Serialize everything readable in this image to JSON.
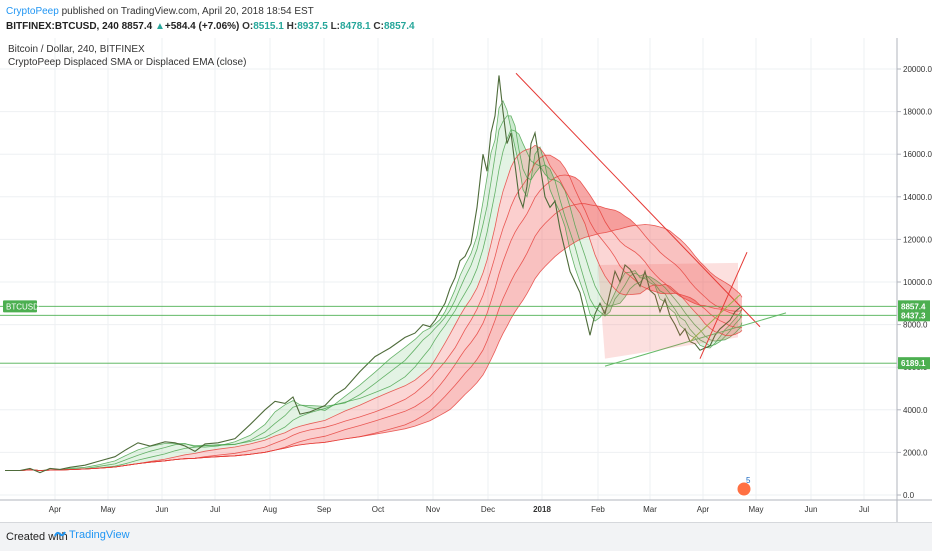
{
  "header": {
    "author": "CryptoPeep",
    "published": " published on TradingView.com, April 20, 2018 18:54 EST",
    "symbol": "BITFINEX:BTCUSD, 240",
    "last": "8857.4",
    "up_arrow": "▲",
    "change": "+584.4 (+7.06%)",
    "o_label": "O:",
    "o_value": "8515.1",
    "h_label": "H:",
    "h_value": "8937.5",
    "l_label": "L:",
    "l_value": "8478.1",
    "c_label": "C:",
    "c_value": "8857.4"
  },
  "legend": {
    "title": "Bitcoin / Dollar, 240, BITFINEX",
    "indicator": "CryptoPeep Displaced SMA or Displaced EMA (close)"
  },
  "footer": {
    "created_with": "Created with",
    "brand": "TradingView"
  },
  "colors": {
    "up": "#26a69a",
    "green_ma": "#4caf50",
    "red_ma": "#e53935",
    "trendline": "#e53935",
    "support": "#66bb6a"
  },
  "chart_data": {
    "type": "line",
    "title": "Bitcoin / Dollar, 240, BITFINEX",
    "subtitle": "CryptoPeep Displaced SMA or Displaced EMA (close)",
    "x_axis": {
      "tick_labels": [
        "Apr",
        "May",
        "Jun",
        "Jul",
        "Aug",
        "Sep",
        "Oct",
        "Nov",
        "Dec",
        "2018",
        "Feb",
        "Mar",
        "Apr",
        "May",
        "Jun",
        "Jul"
      ]
    },
    "y_axis": {
      "range": [
        0,
        21000
      ],
      "tick_labels": [
        "0.0",
        "2000.0",
        "4000.0",
        "6000.0",
        "8000.0",
        "10000.0",
        "12000.0",
        "14000.0",
        "16000.0",
        "18000.0",
        "20000.0"
      ],
      "tick_values": [
        0,
        2000,
        4000,
        6000,
        8000,
        10000,
        12000,
        14000,
        16000,
        18000,
        20000
      ]
    },
    "price_labels": [
      {
        "text": "8857.4",
        "value": 8857.4,
        "color": "#4caf50"
      },
      {
        "text": "8437.3",
        "value": 8437.3,
        "color": "#4caf50"
      },
      {
        "text": "6189.1",
        "value": 6189.1,
        "color": "#4caf50"
      }
    ],
    "symbol_tag": "BTCUSD",
    "marker_label": "5",
    "series": [
      {
        "name": "BTCUSD",
        "t": [
          0,
          15,
          25,
          35,
          45,
          55,
          65,
          80,
          95,
          110,
          120,
          133,
          145,
          160,
          170,
          180,
          190,
          200,
          213,
          230,
          245,
          260,
          270,
          280,
          288,
          295,
          305,
          320,
          330,
          340,
          355,
          370,
          385,
          400,
          410,
          418,
          425,
          430,
          435,
          440,
          445,
          450,
          455,
          460,
          466,
          472,
          478,
          482,
          486,
          490,
          494,
          498,
          502,
          506,
          510,
          514,
          518,
          522,
          526,
          530,
          535,
          540,
          545,
          550,
          555,
          560,
          565,
          570,
          575,
          580,
          585,
          590,
          595,
          600,
          605,
          610,
          615,
          620,
          625,
          630,
          635,
          640,
          645,
          650,
          655,
          660,
          665,
          670,
          675,
          680,
          685,
          690,
          695,
          700,
          705,
          710,
          715,
          720,
          725,
          730,
          735,
          737
        ],
        "v": [
          1150,
          1150,
          1250,
          1050,
          1250,
          1200,
          1300,
          1400,
          1600,
          1800,
          2100,
          2450,
          2300,
          2500,
          2450,
          2300,
          2050,
          2400,
          2450,
          2650,
          3300,
          4000,
          4400,
          4300,
          4600,
          3800,
          3900,
          4200,
          4700,
          5000,
          5800,
          6500,
          6900,
          7400,
          7600,
          8000,
          7900,
          8200,
          8600,
          9000,
          9700,
          10200,
          11000,
          11200,
          11800,
          13500,
          16000,
          15200,
          17000,
          17800,
          19700,
          18000,
          16500,
          17000,
          15500,
          14000,
          13500,
          14500,
          16500,
          17000,
          15500,
          14000,
          13500,
          13800,
          12500,
          11500,
          10500,
          10000,
          9500,
          8500,
          7500,
          8500,
          9000,
          8500,
          9500,
          10500,
          10000,
          10800,
          10600,
          10200,
          9800,
          10500,
          9600,
          9400,
          8600,
          9200,
          8400,
          8000,
          7500,
          7800,
          7200,
          7100,
          6800,
          6900,
          7000,
          7500,
          7800,
          8000,
          8200,
          8600,
          8800,
          8857
        ]
      }
    ]
  }
}
